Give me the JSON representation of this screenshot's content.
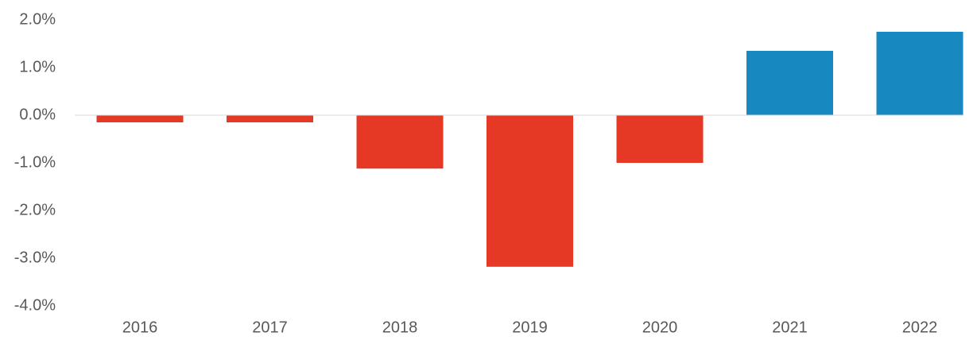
{
  "chart_data": {
    "type": "bar",
    "categories": [
      "2016",
      "2017",
      "2018",
      "2019",
      "2020",
      "2021",
      "2022"
    ],
    "values": [
      -0.15,
      -0.15,
      -1.12,
      -3.18,
      -1.0,
      1.35,
      1.75
    ],
    "colors": [
      "#e53825",
      "#e53825",
      "#e53825",
      "#e53825",
      "#e53825",
      "#1888c1",
      "#1888c1"
    ],
    "ylim": [
      -4,
      2
    ],
    "yticks": [
      {
        "value": -4,
        "label": "-4.0%"
      },
      {
        "value": -3,
        "label": "-3.0%"
      },
      {
        "value": -2,
        "label": "-2.0%"
      },
      {
        "value": -1,
        "label": "-1.0%"
      },
      {
        "value": 0,
        "label": "0.0%"
      },
      {
        "value": 1,
        "label": "1.0%"
      },
      {
        "value": 2,
        "label": "2.0%"
      }
    ],
    "grid": false
  }
}
